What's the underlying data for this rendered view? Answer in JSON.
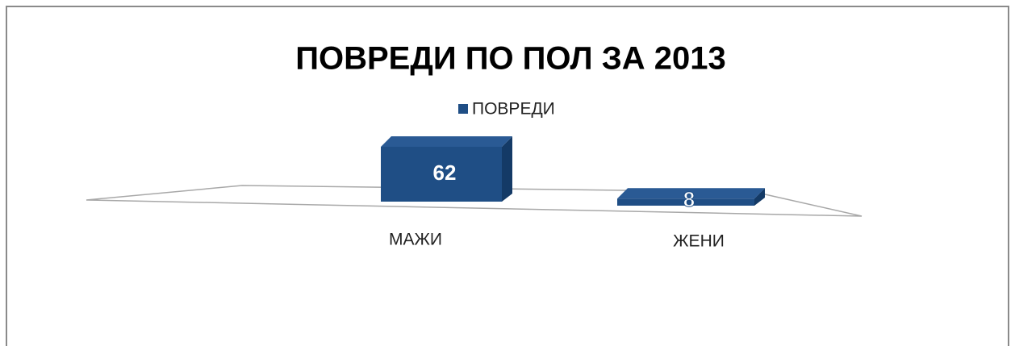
{
  "chart_data": {
    "type": "bar",
    "title": "ПОВРЕДИ ПО ПОЛ ЗА 2013",
    "categories": [
      "МАЖИ",
      "ЖЕНИ"
    ],
    "series": [
      {
        "name": "ПОВРЕДИ",
        "color": "#1f4e85",
        "values": [
          62,
          8
        ]
      }
    ]
  }
}
